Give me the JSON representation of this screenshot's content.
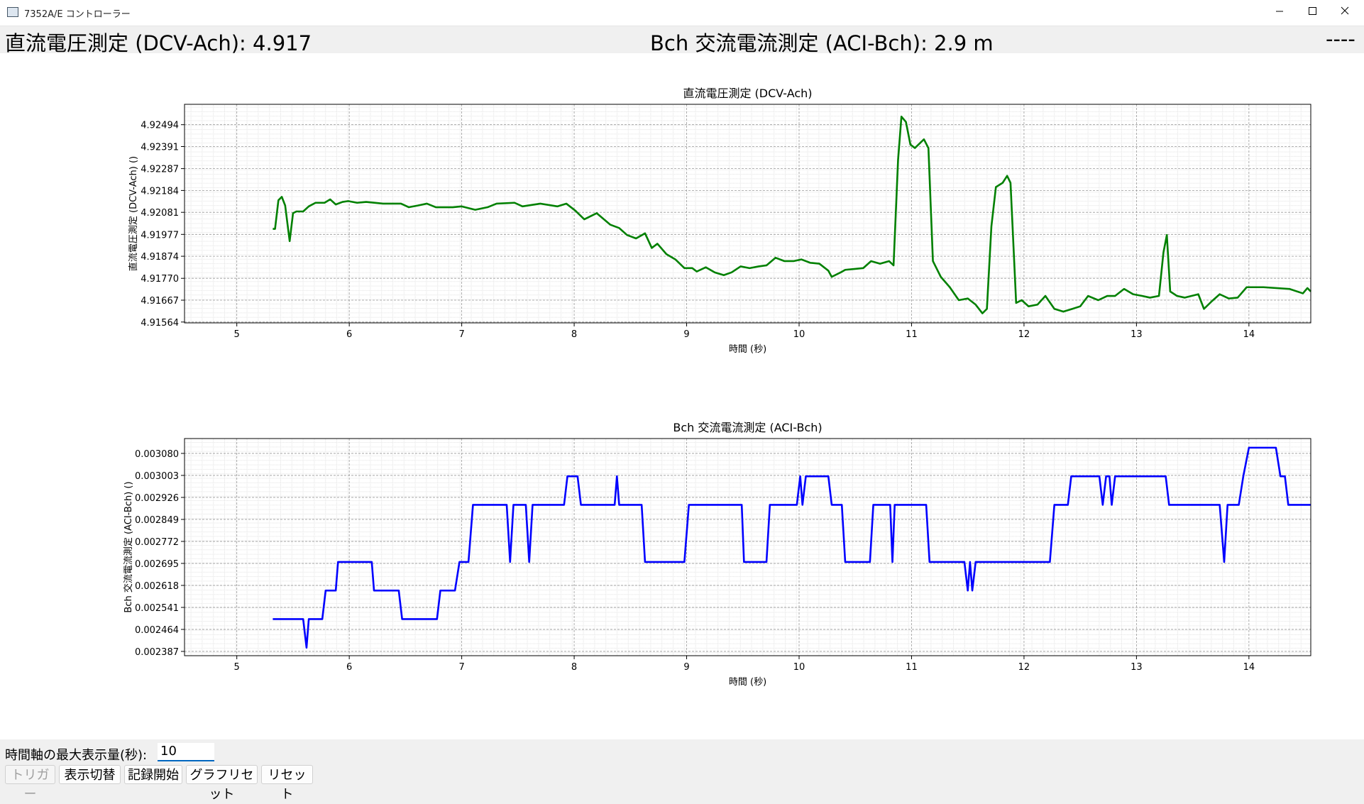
{
  "window": {
    "title": "7352A/E コントローラー"
  },
  "header": {
    "left": "直流電圧測定 (DCV-Ach): 4.917",
    "center": "Bch 交流電流測定 (ACI-Bch): 2.9 m",
    "right": "----"
  },
  "chart_data": [
    {
      "type": "line",
      "title": "直流電圧測定 (DCV-Ach)",
      "xlabel": "時間 (秒)",
      "ylabel": "直流電圧測定 (DCV-Ach) ()",
      "color": "#008000",
      "grid": true,
      "xlim": [
        4.535,
        14.55
      ],
      "xticks": [
        5,
        6,
        7,
        8,
        9,
        10,
        11,
        12,
        13,
        14
      ],
      "ylim": [
        4.9156,
        4.9259
      ],
      "yticks": [
        4.91564,
        4.91667,
        {
          "value": 4.9177,
          "label": "4.91770"
        },
        4.91874,
        4.91977,
        4.92081,
        4.92184,
        4.92287,
        4.92391,
        4.92494
      ],
      "x": [
        5.32,
        5.34,
        5.37,
        5.4,
        5.43,
        5.47,
        5.5,
        5.53,
        5.59,
        5.64,
        5.7,
        5.78,
        5.83,
        5.88,
        5.94,
        5.99,
        6.07,
        6.15,
        6.3,
        6.46,
        6.53,
        6.61,
        6.69,
        6.77,
        6.92,
        7.0,
        7.12,
        7.23,
        7.31,
        7.47,
        7.54,
        7.7,
        7.85,
        7.93,
        8.01,
        8.09,
        8.2,
        8.32,
        8.4,
        8.47,
        8.55,
        8.63,
        8.69,
        8.74,
        8.82,
        8.9,
        8.98,
        9.05,
        9.09,
        9.17,
        9.25,
        9.33,
        9.4,
        9.48,
        9.56,
        9.64,
        9.71,
        9.79,
        9.87,
        9.95,
        10.02,
        10.1,
        10.18,
        10.26,
        10.29,
        10.37,
        10.41,
        10.49,
        10.57,
        10.64,
        10.72,
        10.8,
        10.84,
        10.88,
        10.91,
        10.95,
        10.99,
        11.03,
        11.11,
        11.15,
        11.19,
        11.26,
        11.34,
        11.42,
        11.5,
        11.57,
        11.63,
        11.67,
        11.71,
        11.75,
        11.81,
        11.85,
        11.88,
        11.93,
        11.98,
        12.04,
        12.12,
        12.19,
        12.27,
        12.35,
        12.43,
        12.5,
        12.57,
        12.66,
        12.74,
        12.81,
        12.89,
        12.97,
        13.05,
        13.12,
        13.2,
        13.24,
        13.27,
        13.3,
        13.36,
        13.43,
        13.55,
        13.6,
        13.67,
        13.74,
        13.82,
        13.9,
        13.98,
        14.05,
        14.13,
        14.36,
        14.48,
        14.52,
        14.55
      ],
      "values": [
        4.92003,
        4.92003,
        4.92138,
        4.92154,
        4.92113,
        4.91945,
        4.92077,
        4.92085,
        4.92085,
        4.92109,
        4.92126,
        4.92126,
        4.92142,
        4.92118,
        4.9213,
        4.92134,
        4.92126,
        4.9213,
        4.92122,
        4.92122,
        4.92105,
        4.92113,
        4.92122,
        4.92105,
        4.92105,
        4.92109,
        4.92093,
        4.92105,
        4.92122,
        4.92126,
        4.92109,
        4.92122,
        4.92109,
        4.92122,
        4.92089,
        4.92048,
        4.92077,
        4.92023,
        4.92007,
        4.91974,
        4.91958,
        4.91982,
        4.91913,
        4.91933,
        4.91884,
        4.91859,
        4.91818,
        4.91818,
        4.91802,
        4.91822,
        4.91798,
        4.91785,
        4.91798,
        4.91826,
        4.91818,
        4.91826,
        4.91831,
        4.91867,
        4.91851,
        4.91851,
        4.91859,
        4.91843,
        4.91839,
        4.91806,
        4.91777,
        4.91798,
        4.9181,
        4.91814,
        4.91818,
        4.91851,
        4.91839,
        4.91851,
        4.91831,
        4.92327,
        4.92532,
        4.92507,
        4.924,
        4.92384,
        4.92425,
        4.92384,
        4.91851,
        4.91777,
        4.91728,
        4.91667,
        4.91675,
        4.91646,
        4.91605,
        4.91626,
        4.92015,
        4.922,
        4.9222,
        4.92253,
        4.9222,
        4.91654,
        4.91667,
        4.91638,
        4.91646,
        4.91687,
        4.91626,
        4.91613,
        4.91626,
        4.91638,
        4.91687,
        4.91667,
        4.91687,
        4.91687,
        4.9172,
        4.91695,
        4.91687,
        4.91679,
        4.91687,
        4.91892,
        4.91974,
        4.91708,
        4.91687,
        4.91679,
        4.91695,
        4.91626,
        4.91662,
        4.91695,
        4.91675,
        4.91679,
        4.91728,
        4.91728,
        4.91728,
        4.9172,
        4.91699,
        4.91724,
        4.91708
      ]
    },
    {
      "type": "line",
      "title": "Bch 交流電流測定 (ACI-Bch)",
      "xlabel": "時間 (秒)",
      "ylabel": "Bch 交流電流測定 (ACI-Bch) ()",
      "color": "#0000ff",
      "grid": true,
      "xlim": [
        4.535,
        14.55
      ],
      "xticks": [
        5,
        6,
        7,
        8,
        9,
        10,
        11,
        12,
        13,
        14
      ],
      "ylim": [
        0.002372,
        0.003132
      ],
      "yticks": [
        0.002387,
        0.002464,
        0.002541,
        0.002618,
        0.002695,
        0.002772,
        0.002849,
        0.002926,
        0.003003,
        {
          "value": 0.00308,
          "label": "0.003080"
        }
      ],
      "x": [
        5.32,
        5.59,
        5.62,
        5.64,
        5.76,
        5.79,
        5.88,
        5.9,
        6.2,
        6.22,
        6.44,
        6.47,
        6.78,
        6.81,
        6.94,
        6.98,
        7.06,
        7.1,
        7.4,
        7.43,
        7.46,
        7.57,
        7.6,
        7.63,
        7.91,
        7.94,
        8.03,
        8.06,
        8.36,
        8.38,
        8.4,
        8.6,
        8.63,
        8.98,
        9.02,
        9.49,
        9.51,
        9.71,
        9.74,
        9.98,
        10.01,
        10.03,
        10.06,
        10.26,
        10.29,
        10.38,
        10.41,
        10.63,
        10.66,
        10.81,
        10.83,
        10.85,
        11.13,
        11.16,
        11.47,
        11.5,
        11.52,
        11.54,
        11.57,
        12.23,
        12.27,
        12.39,
        12.42,
        12.67,
        12.7,
        12.73,
        12.76,
        12.78,
        12.81,
        13.26,
        13.29,
        13.74,
        13.78,
        13.81,
        13.91,
        13.95,
        14.0,
        14.24,
        14.28,
        14.32,
        14.35,
        14.55
      ],
      "values": [
        0.0025,
        0.0025,
        0.0024,
        0.0025,
        0.0025,
        0.0026,
        0.0026,
        0.0027,
        0.0027,
        0.0026,
        0.0026,
        0.0025,
        0.0025,
        0.0026,
        0.0026,
        0.0027,
        0.0027,
        0.0029,
        0.0029,
        0.0027,
        0.0029,
        0.0029,
        0.0027,
        0.0029,
        0.0029,
        0.003,
        0.003,
        0.0029,
        0.0029,
        0.003,
        0.0029,
        0.0029,
        0.0027,
        0.0027,
        0.0029,
        0.0029,
        0.0027,
        0.0027,
        0.0029,
        0.0029,
        0.003,
        0.0029,
        0.003,
        0.003,
        0.0029,
        0.0029,
        0.0027,
        0.0027,
        0.0029,
        0.0029,
        0.0027,
        0.0029,
        0.0029,
        0.0027,
        0.0027,
        0.0026,
        0.0027,
        0.0026,
        0.0027,
        0.0027,
        0.0029,
        0.0029,
        0.003,
        0.003,
        0.0029,
        0.003,
        0.003,
        0.0029,
        0.003,
        0.003,
        0.0029,
        0.0029,
        0.0027,
        0.0029,
        0.0029,
        0.003,
        0.0031,
        0.0031,
        0.003,
        0.003,
        0.0029,
        0.0029
      ]
    }
  ],
  "controls": {
    "axis_label": "時間軸の最大表示量(秒):",
    "axis_value": "10",
    "buttons": [
      "トリガー",
      "表示切替",
      "記録開始",
      "グラフリセット",
      "リセット"
    ]
  }
}
